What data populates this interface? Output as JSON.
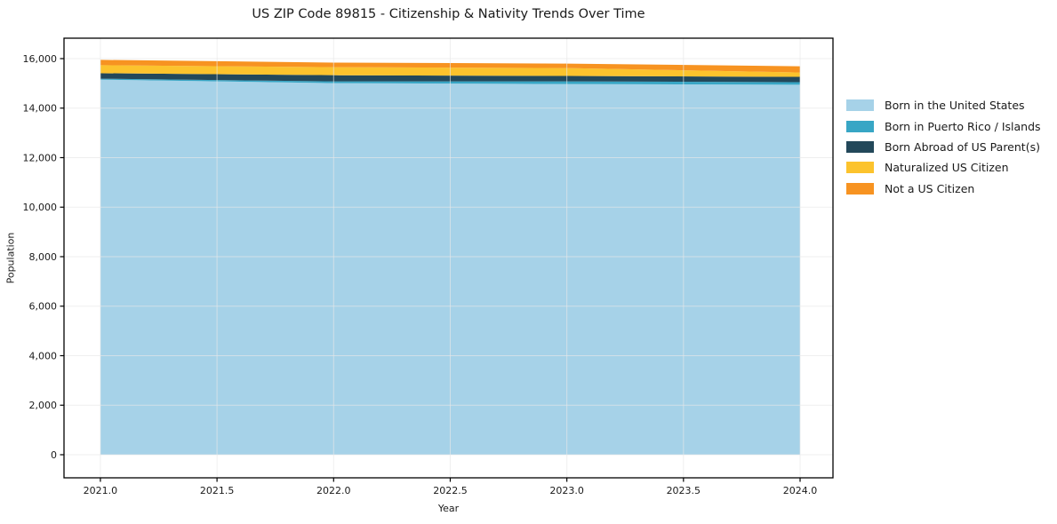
{
  "title": "US ZIP Code 89815 - Citizenship & Nativity Trends Over Time",
  "chart_data": {
    "type": "area",
    "stacked": true,
    "title": "US ZIP Code 89815 - Citizenship & Nativity Trends Over Time",
    "xlabel": "Year",
    "ylabel": "Population",
    "x": [
      2021,
      2022,
      2023,
      2024
    ],
    "series": [
      {
        "name": "Born in the United States",
        "color": "#a6d2e8",
        "values": [
          15150,
          15010,
          14975,
          14945
        ]
      },
      {
        "name": "Born in Puerto Rico / Islands",
        "color": "#38a6c5",
        "values": [
          40,
          70,
          105,
          105
        ]
      },
      {
        "name": "Born Abroad of US Parent(s)",
        "color": "#23485a",
        "values": [
          220,
          250,
          220,
          215
        ]
      },
      {
        "name": "Naturalized US Citizen",
        "color": "#fcc32d",
        "values": [
          325,
          325,
          320,
          175
        ]
      },
      {
        "name": "Not a US Citizen",
        "color": "#f79321",
        "values": [
          215,
          185,
          180,
          250
        ]
      }
    ],
    "totals": [
      15950,
      15840,
      15800,
      15690
    ],
    "xlim": [
      2020.844,
      2024.141
    ],
    "ylim": [
      -933,
      16825
    ],
    "x_ticks": {
      "values": [
        2021.0,
        2021.5,
        2022.0,
        2022.5,
        2023.0,
        2023.5,
        2024.0
      ],
      "labels": [
        "2021.0",
        "2021.5",
        "2022.0",
        "2022.5",
        "2023.0",
        "2023.5",
        "2024.0"
      ]
    },
    "y_ticks": {
      "values": [
        0,
        2000,
        4000,
        6000,
        8000,
        10000,
        12000,
        14000,
        16000
      ],
      "labels": [
        "0",
        "2,000",
        "4,000",
        "6,000",
        "8,000",
        "10,000",
        "12,000",
        "14,000",
        "16,000"
      ]
    },
    "grid": true,
    "grid_color": "#e8e8e8",
    "spine_color": "#000000",
    "legend_position": "right-outside"
  }
}
